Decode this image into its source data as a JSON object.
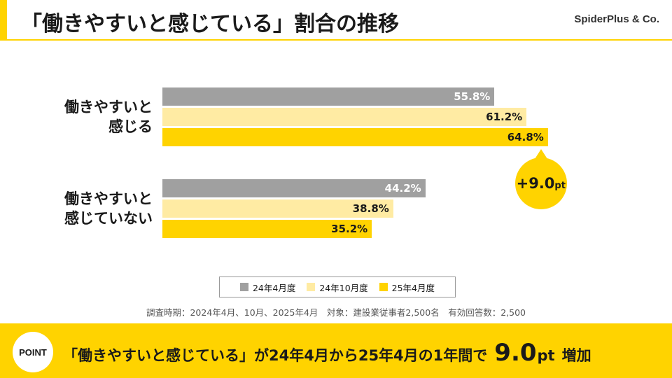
{
  "header": {
    "title": "「働きやすいと感じている」割合の推移",
    "brand": "SpiderPlus & Co."
  },
  "chart_data": {
    "type": "bar",
    "orientation": "horizontal",
    "categories": [
      "働きやすいと\n感じる",
      "働きやすいと\n感じていない"
    ],
    "series": [
      {
        "name": "24年4月度",
        "values": [
          55.8,
          44.2
        ],
        "labels": [
          "55.8%",
          "44.2%"
        ],
        "color": "#A0A0A0"
      },
      {
        "name": "24年10月度",
        "values": [
          61.2,
          38.8
        ],
        "labels": [
          "61.2%",
          "38.8%"
        ],
        "color": "#FFEBA3"
      },
      {
        "name": "25年4月度",
        "values": [
          64.8,
          35.2
        ],
        "labels": [
          "64.8%",
          "35.2%"
        ],
        "color": "#FFD300"
      }
    ],
    "xlim": [
      0,
      100
    ],
    "unit": "%",
    "grid": false,
    "legend_position": "bottom",
    "annotations": [
      {
        "category": "働きやすいと\n感じる",
        "value_text": "+9.0",
        "unit_text": "pt"
      }
    ]
  },
  "footnote": "調査時期：2024年4月、10月、2025年4月　対象：建設業従事者2,500名　有効回答数：2,500",
  "point": {
    "badge": "POINT",
    "text": "「働きやすいと感じている」が24年4月から25年4月の1年間で",
    "value": "9.0",
    "unit": "pt",
    "suffix": "増加"
  },
  "colors": {
    "accent": "#FFD300"
  }
}
